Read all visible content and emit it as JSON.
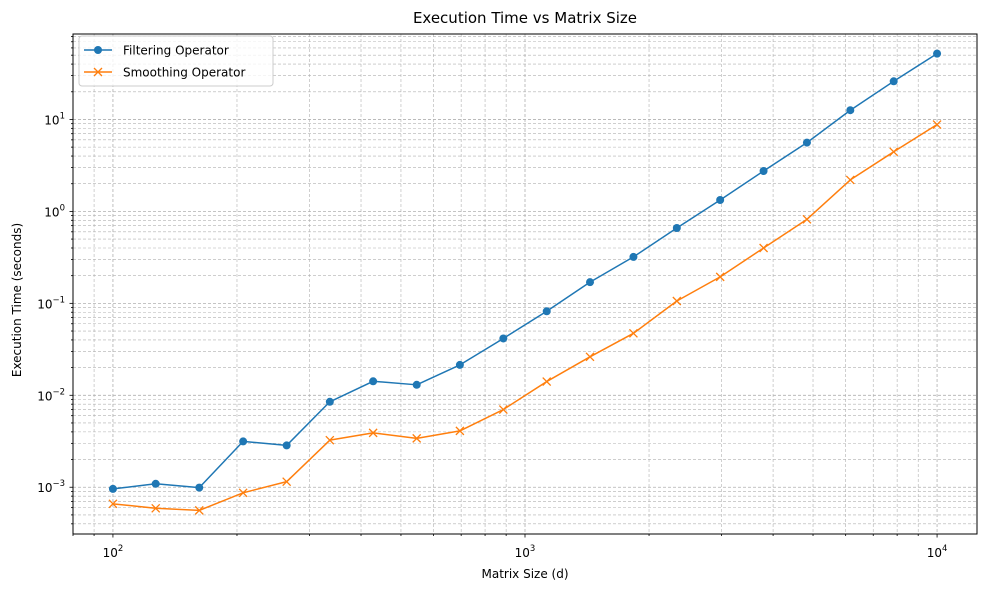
{
  "chart_data": {
    "type": "line",
    "title": "Execution Time vs Matrix Size",
    "xlabel": "Matrix Size (d)",
    "ylabel": "Execution Time (seconds)",
    "xscale": "log",
    "yscale": "log",
    "xlim": [
      80,
      12500
    ],
    "ylim": [
      0.00031,
      85
    ],
    "x_ticks": [
      {
        "value": 100,
        "base": "10",
        "exp": "2"
      },
      {
        "value": 1000,
        "base": "10",
        "exp": "3"
      },
      {
        "value": 10000,
        "base": "10",
        "exp": "4"
      }
    ],
    "y_ticks": [
      {
        "value": 0.001,
        "base": "10",
        "exp": "−3"
      },
      {
        "value": 0.01,
        "base": "10",
        "exp": "−2"
      },
      {
        "value": 0.1,
        "base": "10",
        "exp": "−1"
      },
      {
        "value": 1,
        "base": "10",
        "exp": "0"
      },
      {
        "value": 10,
        "base": "10",
        "exp": "1"
      }
    ],
    "grid": "major and minor, dashed",
    "legend_position": "top-left",
    "x": [
      100,
      127,
      162,
      207,
      264,
      336,
      428,
      546,
      695,
      886,
      1129,
      1438,
      1833,
      2336,
      2976,
      3793,
      4833,
      6158,
      7848,
      10000
    ],
    "series": [
      {
        "name": "Filtering Operator",
        "color": "#1f77b4",
        "marker": "circle",
        "values": [
          0.00096,
          0.00109,
          0.00099,
          0.00315,
          0.00285,
          0.0085,
          0.0142,
          0.013,
          0.0214,
          0.0415,
          0.082,
          0.17,
          0.32,
          0.66,
          1.33,
          2.75,
          5.6,
          12.6,
          26.0,
          52.0
        ]
      },
      {
        "name": "Smoothing Operator",
        "color": "#ff7f0e",
        "marker": "x",
        "values": [
          0.00066,
          0.00059,
          0.00056,
          0.00087,
          0.00115,
          0.00325,
          0.0039,
          0.0034,
          0.0041,
          0.007,
          0.0141,
          0.0262,
          0.0472,
          0.106,
          0.194,
          0.4,
          0.82,
          2.2,
          4.45,
          8.8
        ]
      }
    ]
  }
}
